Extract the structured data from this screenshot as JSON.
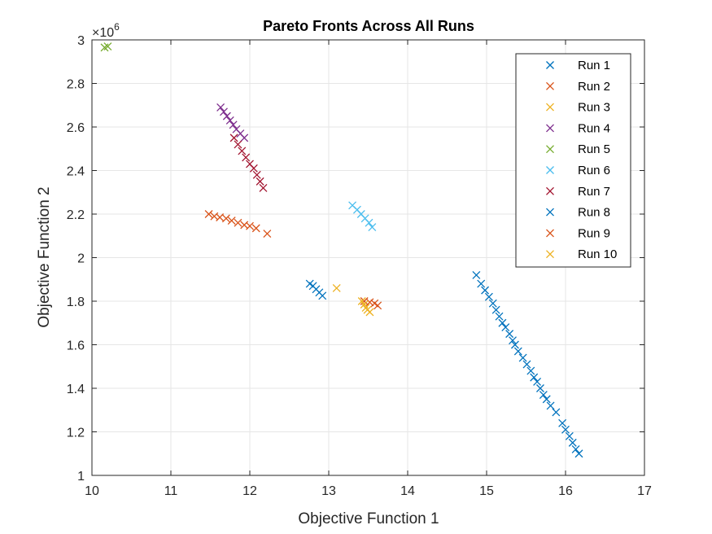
{
  "chart_data": {
    "type": "scatter",
    "title": "Pareto Fronts Across All Runs",
    "xlabel": "Objective Function 1",
    "ylabel": "Objective Function 2",
    "xlim": [
      10,
      17
    ],
    "ylim": [
      1,
      3
    ],
    "xticks": [
      "10",
      "11",
      "12",
      "13",
      "14",
      "15",
      "16",
      "17"
    ],
    "yticks": [
      "1",
      "1.2",
      "1.4",
      "1.6",
      "1.8",
      "2",
      "2.2",
      "2.4",
      "2.6",
      "2.8",
      "3"
    ],
    "y_multiplier": {
      "base": "×10",
      "exponent": "6"
    },
    "grid": true,
    "legend_position": "top-right",
    "series": [
      {
        "name": "Run 1",
        "color": "#0072BD",
        "points": [
          [
            14.87,
            1.92
          ],
          [
            14.93,
            1.88
          ],
          [
            14.98,
            1.85
          ],
          [
            15.03,
            1.82
          ],
          [
            15.08,
            1.79
          ],
          [
            15.12,
            1.76
          ],
          [
            15.16,
            1.73
          ],
          [
            15.2,
            1.7
          ],
          [
            15.24,
            1.68
          ],
          [
            15.29,
            1.65
          ],
          [
            15.33,
            1.62
          ],
          [
            15.36,
            1.6
          ],
          [
            15.4,
            1.57
          ],
          [
            15.46,
            1.54
          ],
          [
            15.51,
            1.51
          ],
          [
            15.56,
            1.48
          ],
          [
            15.6,
            1.45
          ],
          [
            15.64,
            1.43
          ],
          [
            15.68,
            1.4
          ],
          [
            15.72,
            1.37
          ],
          [
            15.76,
            1.35
          ],
          [
            15.81,
            1.32
          ],
          [
            15.88,
            1.29
          ],
          [
            15.96,
            1.24
          ],
          [
            16.0,
            1.21
          ],
          [
            16.05,
            1.18
          ],
          [
            16.09,
            1.15
          ],
          [
            16.13,
            1.12
          ],
          [
            16.17,
            1.1
          ]
        ]
      },
      {
        "name": "Run 2",
        "color": "#D95319",
        "points": [
          [
            11.48,
            2.2
          ],
          [
            11.55,
            2.19
          ],
          [
            11.62,
            2.185
          ],
          [
            11.7,
            2.18
          ],
          [
            11.77,
            2.17
          ],
          [
            11.85,
            2.16
          ],
          [
            11.93,
            2.15
          ],
          [
            12.0,
            2.145
          ],
          [
            12.08,
            2.135
          ],
          [
            12.22,
            2.11
          ]
        ]
      },
      {
        "name": "Run 3",
        "color": "#EDB120",
        "points": [
          [
            13.1,
            1.86
          ]
        ]
      },
      {
        "name": "Run 4",
        "color": "#7E2F8E",
        "points": [
          [
            11.63,
            2.69
          ],
          [
            11.67,
            2.67
          ],
          [
            11.71,
            2.65
          ],
          [
            11.75,
            2.63
          ],
          [
            11.79,
            2.61
          ],
          [
            11.83,
            2.59
          ],
          [
            11.88,
            2.57
          ],
          [
            11.93,
            2.55
          ]
        ]
      },
      {
        "name": "Run 5",
        "color": "#77AC30",
        "points": [
          [
            10.16,
            2.965
          ],
          [
            10.2,
            2.97
          ]
        ]
      },
      {
        "name": "Run 6",
        "color": "#4DBEEE",
        "points": [
          [
            13.3,
            2.24
          ],
          [
            13.36,
            2.22
          ],
          [
            13.41,
            2.2
          ],
          [
            13.46,
            2.18
          ],
          [
            13.51,
            2.16
          ],
          [
            13.55,
            2.14
          ]
        ]
      },
      {
        "name": "Run 7",
        "color": "#A2142F",
        "points": [
          [
            11.8,
            2.55
          ],
          [
            11.85,
            2.52
          ],
          [
            11.9,
            2.49
          ],
          [
            11.95,
            2.46
          ],
          [
            12.0,
            2.43
          ],
          [
            12.05,
            2.41
          ],
          [
            12.09,
            2.38
          ],
          [
            12.13,
            2.35
          ],
          [
            12.17,
            2.32
          ]
        ]
      },
      {
        "name": "Run 8",
        "color": "#0072BD",
        "points": [
          [
            12.76,
            1.88
          ],
          [
            12.8,
            1.87
          ],
          [
            12.84,
            1.855
          ],
          [
            12.88,
            1.84
          ],
          [
            12.92,
            1.825
          ]
        ]
      },
      {
        "name": "Run 9",
        "color": "#D95319",
        "points": [
          [
            13.45,
            1.8
          ],
          [
            13.52,
            1.795
          ],
          [
            13.58,
            1.79
          ],
          [
            13.62,
            1.78
          ]
        ]
      },
      {
        "name": "Run 10",
        "color": "#EDB120",
        "points": [
          [
            13.42,
            1.8
          ],
          [
            13.45,
            1.785
          ],
          [
            13.47,
            1.77
          ],
          [
            13.49,
            1.76
          ],
          [
            13.52,
            1.75
          ]
        ]
      }
    ]
  }
}
